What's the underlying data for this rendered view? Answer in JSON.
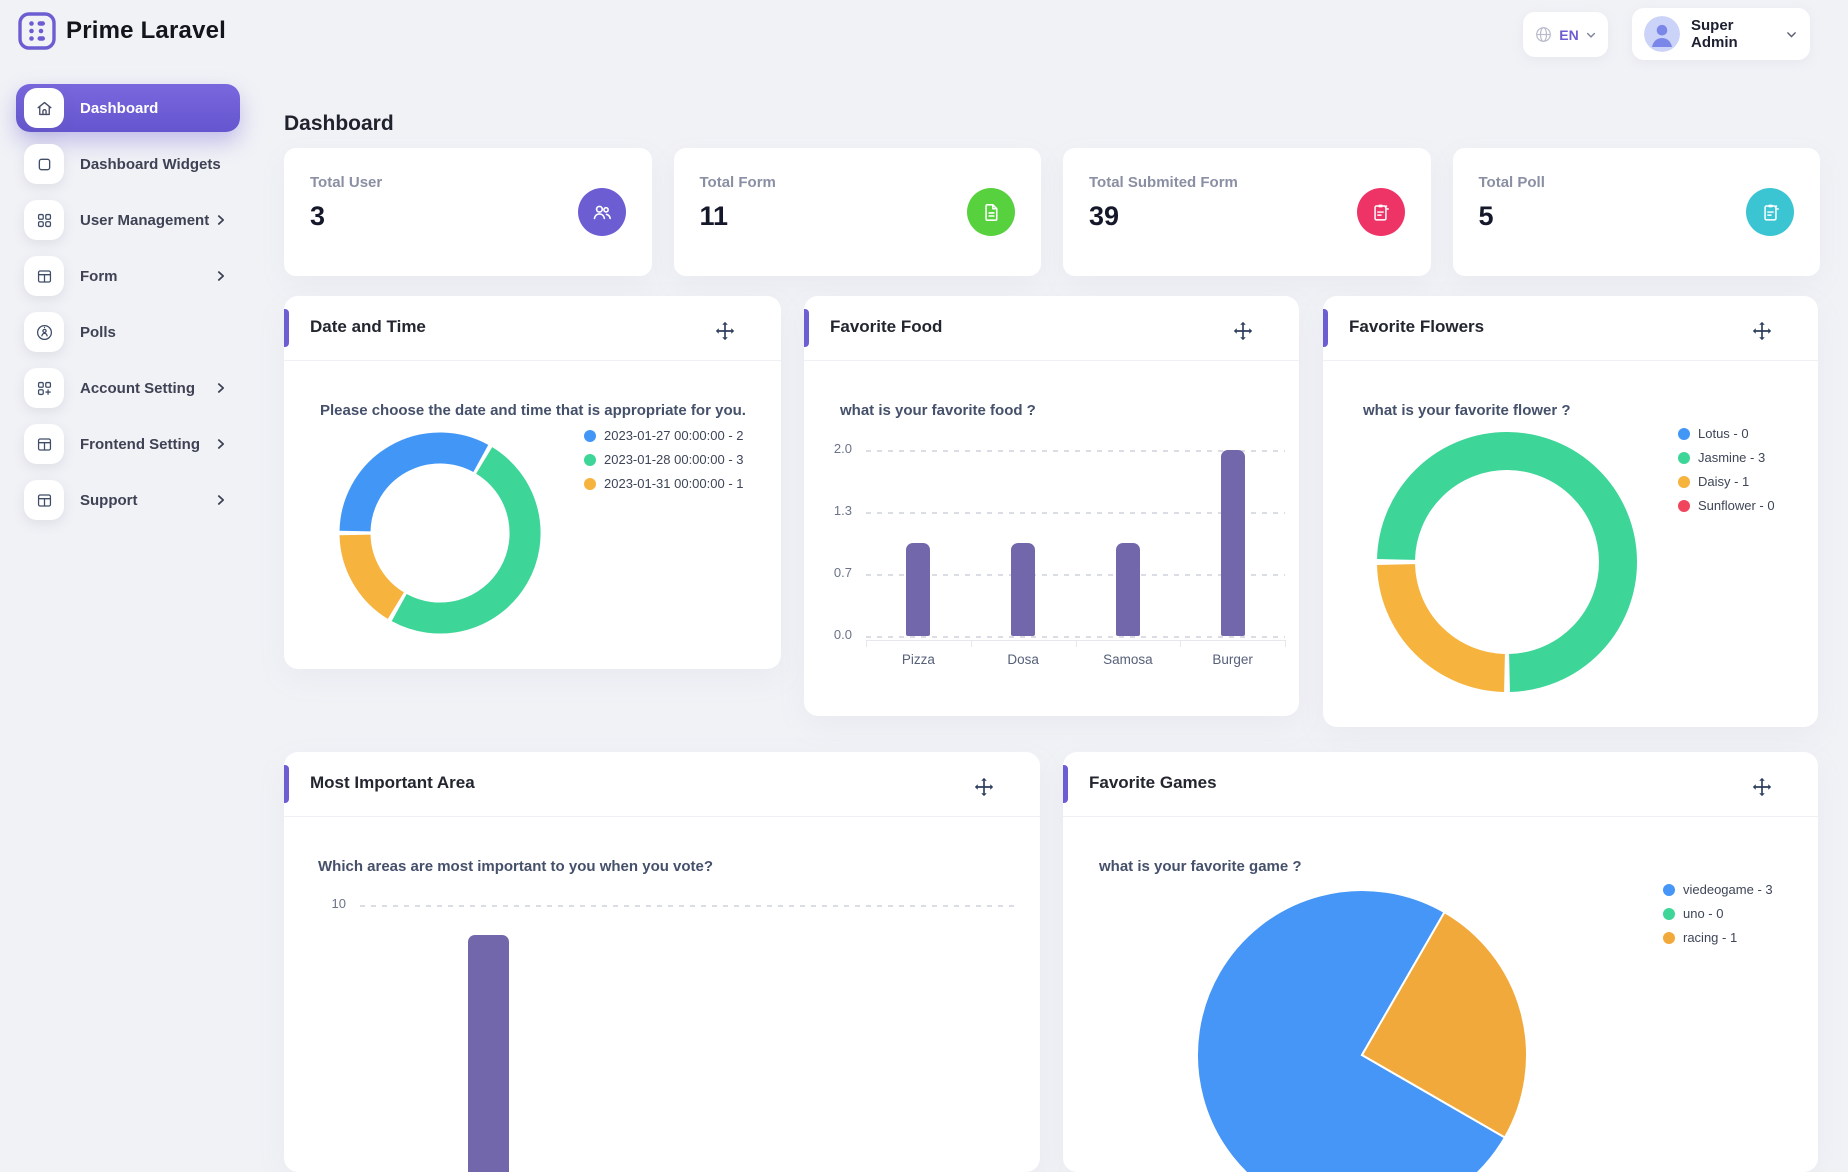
{
  "theme": {
    "primary": "#6c5dd3"
  },
  "brand": {
    "name": "Prime Laravel"
  },
  "topbar": {
    "language": "EN",
    "user_name": "Super Admin"
  },
  "sidebar": {
    "items": [
      {
        "label": "Dashboard"
      },
      {
        "label": "Dashboard Widgets"
      },
      {
        "label": "User Management"
      },
      {
        "label": "Form"
      },
      {
        "label": "Polls"
      },
      {
        "label": "Account Setting"
      },
      {
        "label": "Frontend Setting"
      },
      {
        "label": "Support"
      }
    ]
  },
  "page": {
    "title": "Dashboard"
  },
  "stats": [
    {
      "label": "Total User",
      "value": "3",
      "color": "#6c5dd3"
    },
    {
      "label": "Total Form",
      "value": "11",
      "color": "#57d13e"
    },
    {
      "label": "Total Submited Form",
      "value": "39",
      "color": "#ee3467"
    },
    {
      "label": "Total Poll",
      "value": "5",
      "color": "#3bc5d3"
    }
  ],
  "widgets": {
    "date_time": {
      "title": "Date and Time",
      "question": "Please choose the date and time that is appropriate for you.",
      "chart": {
        "type": "doughnut",
        "labels": [
          "2023-01-27 00:00:00",
          "2023-01-28 00:00:00",
          "2023-01-31 00:00:00"
        ],
        "values": [
          2,
          3,
          1
        ],
        "colors": [
          "#4297f6",
          "#3ed598",
          "#f6b33d"
        ],
        "start_deg": 270,
        "legend": [
          {
            "label": "2023-01-27 00:00:00 - 2",
            "color": "#4297f6"
          },
          {
            "label": "2023-01-28 00:00:00 - 3",
            "color": "#3ed598"
          },
          {
            "label": "2023-01-31 00:00:00 - 1",
            "color": "#f6b33d"
          }
        ]
      }
    },
    "favorite_food": {
      "title": "Favorite Food",
      "question": "what is your favorite food ?",
      "chart": {
        "type": "bar",
        "categories": [
          "Pizza",
          "Dosa",
          "Samosa",
          "Burger"
        ],
        "values": [
          1,
          1,
          1,
          2
        ],
        "ymax": 2,
        "yticks": [
          {
            "label": "2.0",
            "frac": 1
          },
          {
            "label": "1.3",
            "frac": 0.6667
          },
          {
            "label": "0.7",
            "frac": 0.3333
          },
          {
            "label": "0.0",
            "frac": 0
          }
        ],
        "bar_color": "#7367ab"
      }
    },
    "favorite_flowers": {
      "title": "Favorite Flowers",
      "question": "what is your favorite flower ?",
      "chart": {
        "type": "doughnut",
        "labels": [
          "Lotus",
          "Jasmine",
          "Daisy",
          "Sunflower"
        ],
        "values": [
          0,
          3,
          1,
          0
        ],
        "colors": [
          "#4297f6",
          "#3ed598",
          "#f6b33d",
          "#f0455c"
        ],
        "start_deg": 270,
        "legend": [
          {
            "label": "Lotus - 0",
            "color": "#4297f6"
          },
          {
            "label": "Jasmine - 3",
            "color": "#3ed598"
          },
          {
            "label": "Daisy - 1",
            "color": "#f6b33d"
          },
          {
            "label": "Sunflower - 0",
            "color": "#f0455c"
          }
        ]
      }
    },
    "most_important": {
      "title": "Most Important Area",
      "question": "Which areas are most important to you when you vote?",
      "chart": {
        "type": "bar",
        "categories": [
          ""
        ],
        "values": [
          9
        ],
        "ymax": 10,
        "yticks": [
          {
            "label": "10",
            "frac": 1
          }
        ],
        "bar_color": "#7367ab"
      }
    },
    "favorite_games": {
      "title": "Favorite Games",
      "question": "what is your favorite game ?",
      "chart": {
        "type": "pie",
        "labels": [
          "viedeogame",
          "uno",
          "racing"
        ],
        "values": [
          3,
          0,
          1
        ],
        "colors": [
          "#4596f7",
          "#3ed598",
          "#f2a93b"
        ],
        "start_deg": 120,
        "legend": [
          {
            "label": "viedeogame - 3",
            "color": "#4596f7"
          },
          {
            "label": "uno - 0",
            "color": "#3ed598"
          },
          {
            "label": "racing - 1",
            "color": "#f2a93b"
          }
        ]
      }
    }
  }
}
